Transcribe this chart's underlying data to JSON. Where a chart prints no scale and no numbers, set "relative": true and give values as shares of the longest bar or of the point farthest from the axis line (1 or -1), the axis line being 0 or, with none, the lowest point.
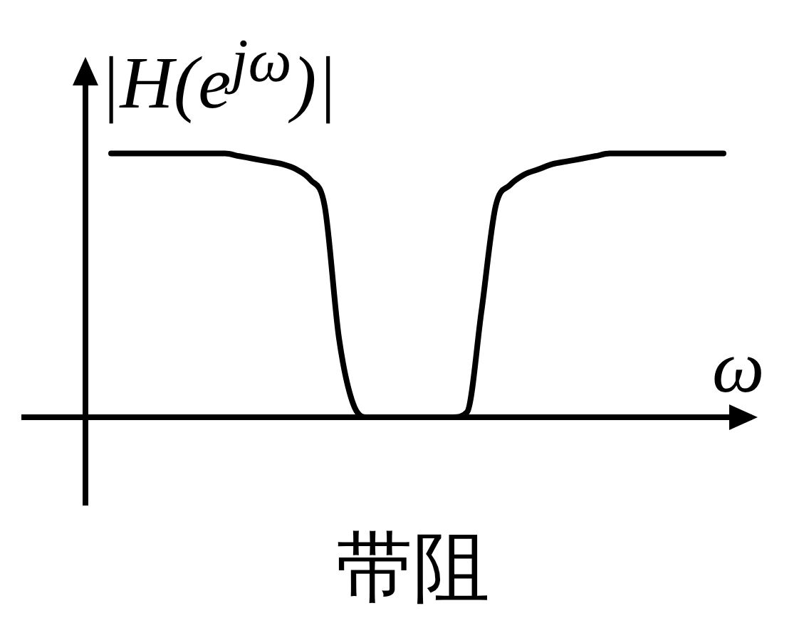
{
  "chart_data": {
    "type": "line",
    "relative": true,
    "title": "带阻",
    "ylabel": "|H(e$^{jω}$)|",
    "xlabel": "ω",
    "color": "#000000",
    "legend": false,
    "marker": "none",
    "line_style": "solid",
    "categories": [
      null,
      null,
      null,
      null,
      null,
      null,
      null,
      null,
      null,
      null,
      null,
      null,
      null,
      null,
      null,
      null,
      null,
      null,
      null,
      null,
      null,
      null,
      null,
      null,
      null,
      null,
      null,
      null,
      null,
      null,
      null,
      null,
      null,
      null,
      null,
      null,
      null,
      null,
      null,
      null,
      null,
      null,
      null,
      null
    ],
    "values": [
      1,
      1,
      1,
      1,
      1,
      1,
      1,
      1,
      1,
      0.99,
      0.98,
      0.97,
      0.96,
      0.94,
      0.9,
      0.8,
      0.3,
      0.05,
      0,
      0,
      0,
      0,
      0,
      0,
      0,
      0.02,
      0.4,
      0.8,
      0.88,
      0.92,
      0.94,
      0.96,
      0.97,
      0.98,
      0.99,
      1,
      1,
      1,
      1,
      1,
      1,
      1,
      1,
      1
    ]
  }
}
